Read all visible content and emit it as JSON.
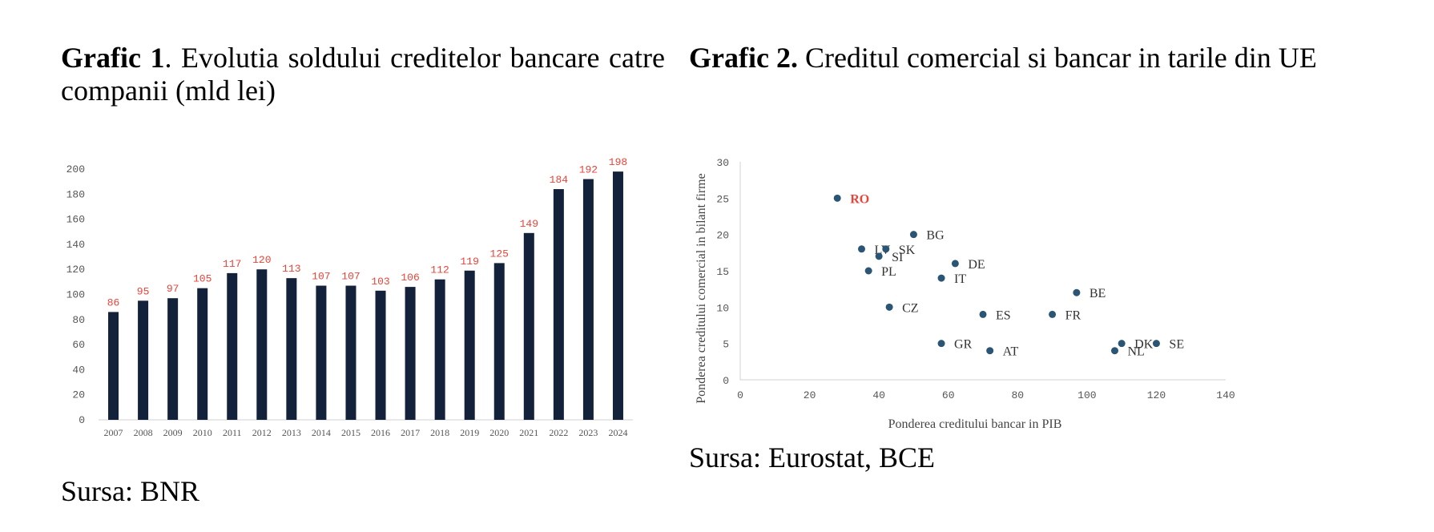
{
  "chart1": {
    "title_bold": "Grafic 1",
    "title_rest": ". Evolutia soldului creditelor bancare catre companii (mld lei)",
    "source": "Sursa: BNR"
  },
  "chart2": {
    "title_bold": "Grafic 2.",
    "title_rest": " Creditul comercial si bancar in tarile din UE",
    "source": "Sursa: Eurostat, BCE"
  },
  "chart_data": [
    {
      "type": "bar",
      "categories": [
        "2007",
        "2008",
        "2009",
        "2010",
        "2011",
        "2012",
        "2013",
        "2014",
        "2015",
        "2016",
        "2017",
        "2018",
        "2019",
        "2020",
        "2021",
        "2022",
        "2023",
        "2024"
      ],
      "values": [
        86,
        95,
        97,
        105,
        117,
        120,
        113,
        107,
        107,
        103,
        106,
        112,
        119,
        125,
        149,
        184,
        192,
        198
      ],
      "ylim": [
        0,
        200
      ],
      "yticks": [
        0,
        20,
        40,
        60,
        80,
        100,
        120,
        140,
        160,
        180,
        200
      ],
      "bar_color": "#14213a",
      "label_color": "#e8443a",
      "grid": false
    },
    {
      "type": "scatter",
      "xlabel": "Ponderea creditului bancar in PIB",
      "ylabel": "Ponderea creditului comercial in bilant firme",
      "xlim": [
        0,
        140
      ],
      "ylim": [
        0,
        30
      ],
      "xticks": [
        0,
        20,
        40,
        60,
        80,
        100,
        120,
        140
      ],
      "yticks": [
        0,
        5,
        10,
        15,
        20,
        25,
        30
      ],
      "point_color": "#2a5575",
      "highlight_color": "#e8443a",
      "points": [
        {
          "label": "RO",
          "x": 28,
          "y": 25,
          "highlight": true
        },
        {
          "label": "BG",
          "x": 50,
          "y": 20
        },
        {
          "label": "LV",
          "x": 35,
          "y": 18
        },
        {
          "label": "SK",
          "x": 42,
          "y": 18
        },
        {
          "label": "SI",
          "x": 40,
          "y": 17
        },
        {
          "label": "PL",
          "x": 37,
          "y": 15
        },
        {
          "label": "DE",
          "x": 62,
          "y": 16
        },
        {
          "label": "IT",
          "x": 58,
          "y": 14
        },
        {
          "label": "BE",
          "x": 97,
          "y": 12
        },
        {
          "label": "CZ",
          "x": 43,
          "y": 10
        },
        {
          "label": "ES",
          "x": 70,
          "y": 9
        },
        {
          "label": "FR",
          "x": 90,
          "y": 9
        },
        {
          "label": "GR",
          "x": 58,
          "y": 5
        },
        {
          "label": "AT",
          "x": 72,
          "y": 4
        },
        {
          "label": "DK",
          "x": 110,
          "y": 5
        },
        {
          "label": "NL",
          "x": 108,
          "y": 4
        },
        {
          "label": "SE",
          "x": 120,
          "y": 5
        }
      ]
    }
  ]
}
